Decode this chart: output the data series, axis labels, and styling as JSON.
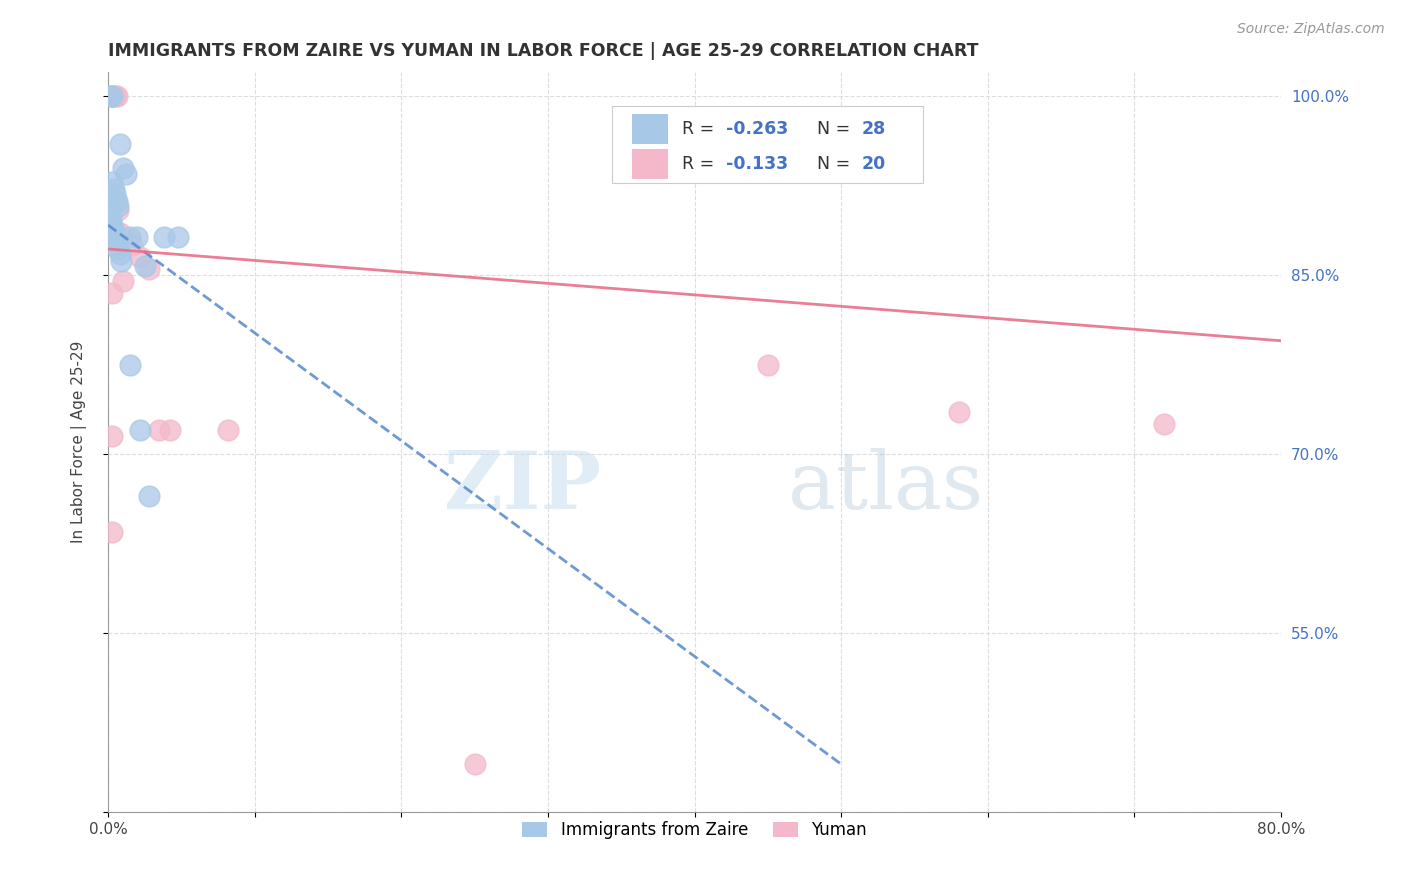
{
  "title": "IMMIGRANTS FROM ZAIRE VS YUMAN IN LABOR FORCE | AGE 25-29 CORRELATION CHART",
  "source": "Source: ZipAtlas.com",
  "ylabel": "In Labor Force | Age 25-29",
  "watermark_zip": "ZIP",
  "watermark_atlas": "atlas",
  "x_min": 0.0,
  "x_max": 0.8,
  "y_min": 0.4,
  "y_max": 1.02,
  "x_ticks": [
    0.0,
    0.1,
    0.2,
    0.3,
    0.4,
    0.5,
    0.6,
    0.7,
    0.8
  ],
  "y_ticks": [
    0.4,
    0.55,
    0.7,
    0.85,
    1.0
  ],
  "y_tick_labels_right": [
    "",
    "55.0%",
    "70.0%",
    "85.0%",
    "100.0%"
  ],
  "legend_r1": "-0.263",
  "legend_n1": "28",
  "legend_r2": "-0.133",
  "legend_n2": "20",
  "color_blue": "#a8c8e8",
  "color_pink": "#f4b8ca",
  "color_blue_line": "#5588cc",
  "color_pink_line": "#e8708a",
  "color_blue_text": "#4472c4",
  "zaire_x": [
    0.002,
    0.003,
    0.008,
    0.01,
    0.012,
    0.003,
    0.004,
    0.005,
    0.006,
    0.007,
    0.001,
    0.002,
    0.003,
    0.004,
    0.001,
    0.005,
    0.006,
    0.007,
    0.008,
    0.009,
    0.015,
    0.02,
    0.025,
    0.015,
    0.022,
    0.028,
    0.038,
    0.048
  ],
  "zaire_y": [
    1.0,
    1.0,
    0.96,
    0.94,
    0.935,
    0.928,
    0.922,
    0.918,
    0.912,
    0.908,
    0.902,
    0.898,
    0.892,
    0.888,
    0.885,
    0.882,
    0.878,
    0.872,
    0.868,
    0.862,
    0.882,
    0.882,
    0.858,
    0.775,
    0.72,
    0.665,
    0.882,
    0.882
  ],
  "yuman_x": [
    0.003,
    0.004,
    0.005,
    0.006,
    0.007,
    0.008,
    0.016,
    0.022,
    0.028,
    0.01,
    0.035,
    0.042,
    0.082,
    0.003,
    0.45,
    0.58,
    0.72,
    0.003,
    0.003,
    0.25
  ],
  "yuman_y": [
    1.0,
    1.0,
    1.0,
    1.0,
    0.905,
    0.885,
    0.875,
    0.865,
    0.855,
    0.845,
    0.72,
    0.72,
    0.72,
    0.835,
    0.775,
    0.735,
    0.725,
    0.715,
    0.635,
    0.44
  ],
  "blue_line_x0": 0.0,
  "blue_line_x1": 0.5,
  "blue_line_y0": 0.892,
  "blue_line_y1": 0.44,
  "pink_line_x0": 0.0,
  "pink_line_x1": 0.8,
  "pink_line_y0": 0.872,
  "pink_line_y1": 0.795
}
